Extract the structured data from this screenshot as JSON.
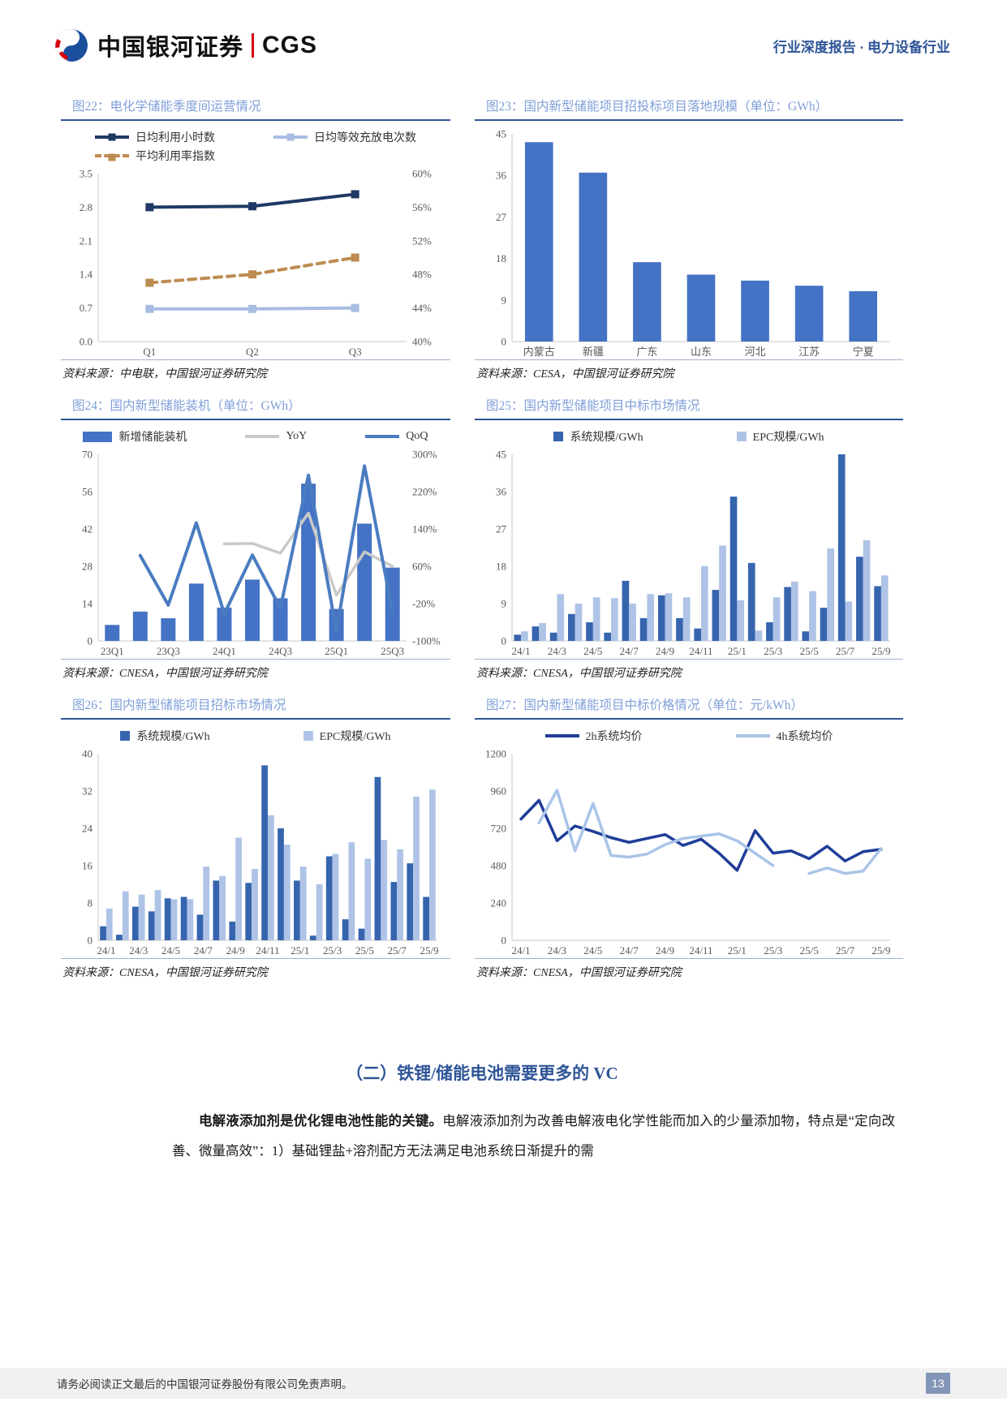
{
  "header": {
    "brand_cn": "中国银河证券",
    "brand_en": "CGS",
    "report_type": "行业深度报告",
    "separator": "·",
    "industry": "电力设备行业"
  },
  "figures": {
    "f22": {
      "title": "图22：电化学储能季度间运营情况",
      "source": "资料来源：中电联，中国银河证券研究院"
    },
    "f23": {
      "title": "图23：国内新型储能项目招投标项目落地规模（单位：GWh）",
      "source": "资料来源：CESA，中国银河证券研究院"
    },
    "f24": {
      "title": "图24：国内新型储能装机（单位：GWh）",
      "source": "资料来源：CNESA，中国银河证券研究院"
    },
    "f25": {
      "title": "图25：国内新型储能项目中标市场情况",
      "source": "资料来源：CNESA，中国银河证券研究院"
    },
    "f26": {
      "title": "图26：国内新型储能项目招标市场情况",
      "source": "资料来源：CNESA，中国银河证券研究院"
    },
    "f27": {
      "title": "图27：国内新型储能项目中标价格情况（单位：元/kWh）",
      "source": "资料来源：CNESA，中国银河证券研究院"
    }
  },
  "section": {
    "heading": "（二）铁锂/储能电池需要更多的 VC",
    "para_lead": "电解液添加剂是优化锂电池性能的关键。",
    "para_rest": "电解液添加剂为改善电解液电化学性能而加入的少量添加物，特点是“定向改善、微量高效”：1）基础锂盐+溶剂配方无法满足电池系统日渐提升的需"
  },
  "footer": {
    "disclaimer": "请务必阅读正文最后的中国银河证券股份有限公司免责声明。",
    "page_number": "13"
  },
  "chart_data": [
    {
      "id": "c22",
      "type": "line",
      "title": "电化学储能季度间运营情况",
      "categories": [
        "Q1",
        "Q2",
        "Q3"
      ],
      "x_every": 1,
      "legend_cols": 2,
      "left": {
        "labels": [
          "0.0",
          "0.7",
          "1.4",
          "2.1",
          "2.8",
          "3.5"
        ],
        "min": 0,
        "max": 3.5
      },
      "right": {
        "labels": [
          "40%",
          "44%",
          "48%",
          "52%",
          "56%",
          "60%"
        ],
        "min": 40,
        "max": 60
      },
      "series": [
        {
          "name": "日均利用小时数",
          "kind": "line",
          "axis": "left",
          "color": "#1F3864",
          "w": 4,
          "marker": true,
          "swatch": "line",
          "values": [
            2.8,
            2.82,
            3.07
          ]
        },
        {
          "name": "日均等效充放电次数",
          "kind": "line",
          "axis": "left",
          "color": "#A9BCE2",
          "w": 4,
          "marker": true,
          "swatch": "line",
          "values": [
            0.68,
            0.68,
            0.7
          ]
        },
        {
          "name": "平均利用率指数",
          "kind": "line",
          "axis": "right",
          "color": "#BC8C51",
          "w": 4,
          "marker": true,
          "dash": "9 7",
          "swatch": "line",
          "values": [
            47,
            48,
            50
          ]
        }
      ]
    },
    {
      "id": "c23",
      "type": "bar",
      "title": "国内新型储能项目招投标项目落地规模（GWh）",
      "categories": [
        "内蒙古",
        "新疆",
        "广东",
        "山东",
        "河北",
        "江苏",
        "宁夏"
      ],
      "x_every": 1,
      "left": {
        "labels": [
          "0",
          "9",
          "18",
          "27",
          "36",
          "45"
        ],
        "min": 0,
        "max": 45
      },
      "series": [
        {
          "name": "",
          "kind": "bar",
          "axis": "left",
          "color": "#4472C4",
          "values": [
            43.2,
            36.6,
            17.2,
            14.5,
            13.2,
            12.1,
            10.9
          ]
        }
      ]
    },
    {
      "id": "c24",
      "type": "combo",
      "title": "国内新型储能装机（GWh）",
      "categories": [
        "23Q1",
        "23Q2",
        "23Q3",
        "23Q4",
        "24Q1",
        "24Q2",
        "24Q3",
        "24Q4",
        "25Q1",
        "25Q2",
        "25Q3"
      ],
      "x_every": 2,
      "legend_cols": 0,
      "left": {
        "labels": [
          "0",
          "14",
          "28",
          "42",
          "56",
          "70"
        ],
        "min": 0,
        "max": 70
      },
      "right": {
        "labels": [
          "-100%",
          "-20%",
          "60%",
          "140%",
          "220%",
          "300%"
        ],
        "min": -100,
        "max": 300
      },
      "series": [
        {
          "name": "新增储能装机",
          "kind": "bar",
          "axis": "left",
          "color": "#4472C4",
          "swatch": "rect-wide",
          "values": [
            6,
            11,
            8.5,
            21.5,
            12.5,
            23,
            16,
            59,
            12,
            44,
            27.5
          ]
        },
        {
          "name": "YoY",
          "kind": "line",
          "axis": "right",
          "color": "#C9C9C9",
          "w": 3.5,
          "swatch": "line",
          "values": [
            null,
            null,
            null,
            null,
            108,
            109,
            88,
            174,
            -2,
            91,
            60
          ]
        },
        {
          "name": "QoQ",
          "kind": "line",
          "axis": "right",
          "color": "#4A7CC0",
          "w": 4,
          "swatch": "line",
          "values": [
            null,
            83,
            -23,
            153,
            -42,
            84,
            -30,
            255,
            -79,
            275,
            -38
          ]
        }
      ]
    },
    {
      "id": "c25",
      "type": "bar",
      "title": "国内新型储能项目中标市场情况",
      "categories": [
        "24/1",
        "24/2",
        "24/3",
        "24/4",
        "24/5",
        "24/6",
        "24/7",
        "24/8",
        "24/9",
        "24/10",
        "24/11",
        "24/12",
        "25/1",
        "25/2",
        "25/3",
        "25/4",
        "25/5",
        "25/6",
        "25/7",
        "25/8",
        "25/9"
      ],
      "x_every": 2,
      "legend_cols": 0,
      "left": {
        "labels": [
          "0",
          "9",
          "18",
          "27",
          "36",
          "45"
        ],
        "min": 0,
        "max": 45
      },
      "series": [
        {
          "name": "系统规模/GWh",
          "kind": "bar",
          "axis": "left",
          "color": "#3665AE",
          "swatch": "rect",
          "values": [
            1.5,
            3.5,
            2,
            6.5,
            4.5,
            2,
            14.5,
            5.5,
            11,
            5.5,
            3,
            12.3,
            34.8,
            18.8,
            4.5,
            13,
            2.3,
            8,
            45,
            20.3,
            13.2
          ]
        },
        {
          "name": "EPC规模/GWh",
          "kind": "bar",
          "axis": "left",
          "color": "#AEC3E6",
          "swatch": "rect",
          "values": [
            2.3,
            4.3,
            11.3,
            9,
            10.5,
            10.3,
            9,
            11.3,
            11.5,
            10.5,
            18,
            23,
            9.8,
            2.5,
            10.5,
            14.3,
            12,
            22.3,
            9.5,
            24.3,
            15.8
          ]
        }
      ]
    },
    {
      "id": "c26",
      "type": "bar",
      "title": "国内新型储能项目招标市场情况",
      "categories": [
        "24/1",
        "24/2",
        "24/3",
        "24/4",
        "24/5",
        "24/6",
        "24/7",
        "24/8",
        "24/9",
        "24/10",
        "24/11",
        "24/12",
        "25/1",
        "25/2",
        "25/3",
        "25/4",
        "25/5",
        "25/6",
        "25/7",
        "25/8",
        "25/9"
      ],
      "x_every": 2,
      "legend_cols": 0,
      "left": {
        "labels": [
          "0",
          "8",
          "16",
          "24",
          "32",
          "40"
        ],
        "min": 0,
        "max": 40
      },
      "series": [
        {
          "name": "系统规模/GWh",
          "kind": "bar",
          "axis": "left",
          "color": "#3665AE",
          "swatch": "rect",
          "values": [
            3,
            1.2,
            7.2,
            6.2,
            9,
            9.3,
            5.5,
            12.8,
            4,
            12.3,
            37.5,
            24,
            12.8,
            1,
            18,
            4.5,
            2.5,
            35,
            12.5,
            16.5,
            9.3
          ]
        },
        {
          "name": "EPC规模/GWh",
          "kind": "bar",
          "axis": "left",
          "color": "#AEC3E6",
          "swatch": "rect",
          "values": [
            6.8,
            10.5,
            9.8,
            10.8,
            8.8,
            8.8,
            15.8,
            13.8,
            22,
            15.3,
            26.8,
            20.5,
            15.8,
            12,
            18.5,
            21,
            17.5,
            21.5,
            19.5,
            30.8,
            32.3
          ]
        }
      ]
    },
    {
      "id": "c27",
      "type": "line",
      "title": "国内新型储能项目中标价格情况（元/kWh）",
      "categories": [
        "24/1",
        "24/2",
        "24/3",
        "24/4",
        "24/5",
        "24/6",
        "24/7",
        "24/8",
        "24/9",
        "24/10",
        "24/11",
        "24/12",
        "25/1",
        "25/2",
        "25/3",
        "25/4",
        "25/5",
        "25/6",
        "25/7",
        "25/8",
        "25/9"
      ],
      "x_every": 2,
      "legend_cols": 0,
      "left": {
        "labels": [
          "0",
          "240",
          "480",
          "720",
          "960",
          "1200"
        ],
        "min": 0,
        "max": 1200
      },
      "series": [
        {
          "name": "2h系统均价",
          "kind": "line",
          "axis": "left",
          "color": "#1F3D99",
          "w": 3.5,
          "swatch": "line",
          "values": [
            780,
            900,
            640,
            735,
            700,
            660,
            630,
            655,
            680,
            610,
            650,
            560,
            450,
            705,
            560,
            575,
            525,
            605,
            510,
            570,
            585
          ]
        },
        {
          "name": "4h系统均价",
          "kind": "line",
          "axis": "left",
          "color": "#A9C4E8",
          "w": 3.5,
          "swatch": "line",
          "values": [
            null,
            755,
            965,
            575,
            880,
            545,
            535,
            555,
            615,
            655,
            670,
            685,
            640,
            560,
            480,
            null,
            430,
            465,
            430,
            445,
            590
          ]
        }
      ]
    }
  ]
}
